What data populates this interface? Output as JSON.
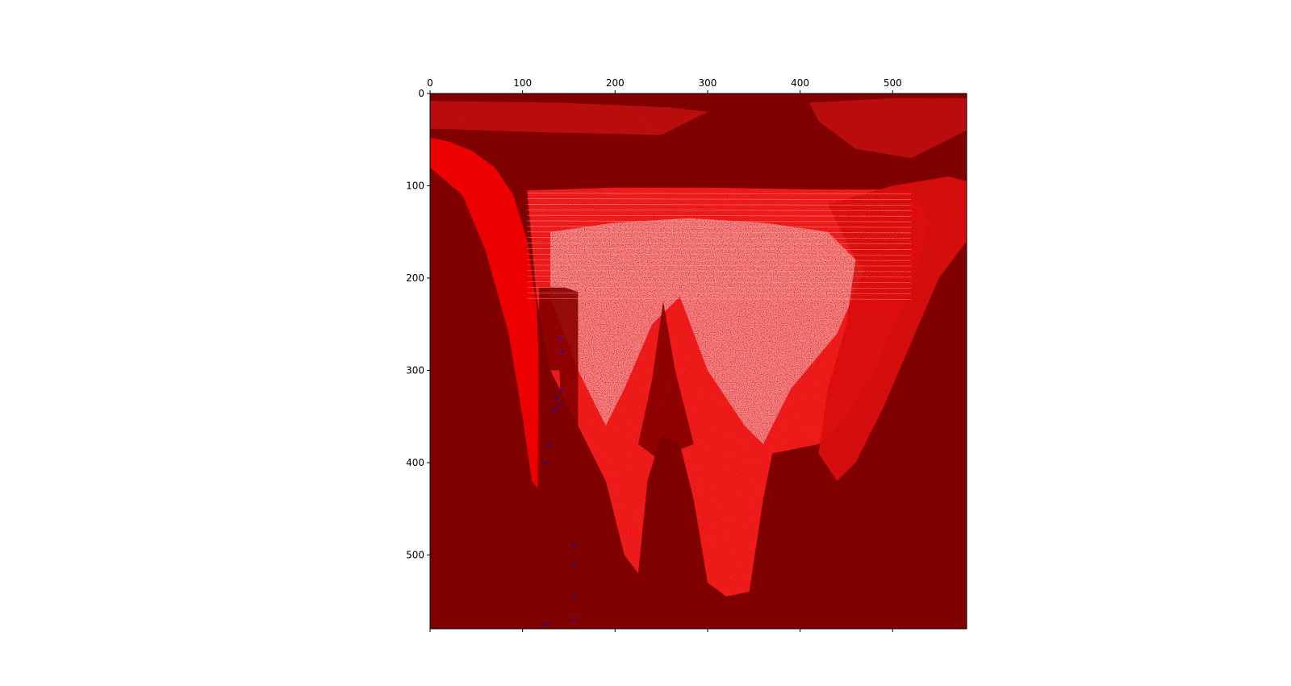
{
  "chart_data": {
    "type": "heatmap",
    "title": "",
    "xlabel": "",
    "ylabel": "",
    "xlim": [
      0,
      580
    ],
    "ylim": [
      580,
      0
    ],
    "x_axis_position": "top",
    "x_ticks": [
      0,
      100,
      200,
      300,
      400,
      500
    ],
    "y_ticks": [
      0,
      100,
      200,
      300,
      400,
      500
    ],
    "x_tick_labels": [
      "0",
      "100",
      "200",
      "300",
      "400",
      "500"
    ],
    "y_tick_labels": [
      "0",
      "100",
      "200",
      "300",
      "400",
      "500"
    ],
    "grid": false,
    "colorbar": false,
    "background_color": "#800000",
    "colormap": [
      "#0000ff",
      "#ff0000",
      "#ffffff",
      "#800000"
    ],
    "regions": [
      {
        "kind": "left-lobe",
        "points": [
          [
            0,
            48
          ],
          [
            20,
            52
          ],
          [
            45,
            62
          ],
          [
            70,
            80
          ],
          [
            90,
            110
          ],
          [
            105,
            160
          ],
          [
            115,
            230
          ],
          [
            118,
            300
          ],
          [
            120,
            380
          ],
          [
            118,
            430
          ],
          [
            110,
            420
          ],
          [
            100,
            350
          ],
          [
            85,
            260
          ],
          [
            60,
            170
          ],
          [
            35,
            110
          ],
          [
            0,
            80
          ]
        ],
        "color": "#ff0000"
      },
      {
        "kind": "central-bowl",
        "points": [
          [
            105,
            105
          ],
          [
            200,
            102
          ],
          [
            300,
            102
          ],
          [
            420,
            104
          ],
          [
            520,
            104
          ],
          [
            540,
            140
          ],
          [
            520,
            210
          ],
          [
            480,
            300
          ],
          [
            450,
            350
          ],
          [
            420,
            380
          ],
          [
            370,
            390
          ],
          [
            360,
            440
          ],
          [
            345,
            540
          ],
          [
            320,
            545
          ],
          [
            300,
            530
          ],
          [
            285,
            440
          ],
          [
            270,
            380
          ],
          [
            250,
            370
          ],
          [
            235,
            420
          ],
          [
            225,
            520
          ],
          [
            210,
            500
          ],
          [
            190,
            420
          ],
          [
            160,
            360
          ],
          [
            130,
            300
          ],
          [
            115,
            220
          ]
        ],
        "color": "#ff2020"
      },
      {
        "kind": "bright-arc",
        "points": [
          [
            130,
            150
          ],
          [
            200,
            140
          ],
          [
            280,
            135
          ],
          [
            360,
            140
          ],
          [
            430,
            150
          ],
          [
            470,
            190
          ],
          [
            440,
            260
          ],
          [
            390,
            320
          ],
          [
            360,
            380
          ],
          [
            340,
            360
          ],
          [
            300,
            300
          ],
          [
            270,
            220
          ],
          [
            240,
            250
          ],
          [
            210,
            320
          ],
          [
            190,
            360
          ],
          [
            160,
            300
          ],
          [
            130,
            220
          ]
        ],
        "color": "#ffb0b0"
      },
      {
        "kind": "right-lobe",
        "points": [
          [
            430,
            120
          ],
          [
            500,
            100
          ],
          [
            560,
            90
          ],
          [
            580,
            95
          ],
          [
            580,
            160
          ],
          [
            550,
            200
          ],
          [
            520,
            270
          ],
          [
            490,
            340
          ],
          [
            460,
            400
          ],
          [
            440,
            420
          ],
          [
            420,
            390
          ],
          [
            430,
            320
          ],
          [
            450,
            250
          ],
          [
            460,
            180
          ]
        ],
        "color": "#e01010"
      },
      {
        "kind": "top-band",
        "points": [
          [
            0,
            8
          ],
          [
            140,
            10
          ],
          [
            260,
            15
          ],
          [
            300,
            20
          ],
          [
            250,
            45
          ],
          [
            120,
            42
          ],
          [
            0,
            38
          ]
        ],
        "color": "#c01010"
      },
      {
        "kind": "top-right-band",
        "points": [
          [
            410,
            10
          ],
          [
            500,
            5
          ],
          [
            580,
            5
          ],
          [
            580,
            40
          ],
          [
            520,
            70
          ],
          [
            460,
            60
          ],
          [
            420,
            30
          ]
        ],
        "color": "#c01010"
      },
      {
        "kind": "peak",
        "points": [
          [
            225,
            380
          ],
          [
            240,
            310
          ],
          [
            252,
            225
          ],
          [
            265,
            300
          ],
          [
            285,
            380
          ],
          [
            260,
            390
          ],
          [
            245,
            395
          ]
        ],
        "color": "#800000"
      },
      {
        "kind": "column-gap",
        "points": [
          [
            118,
            210
          ],
          [
            145,
            210
          ],
          [
            160,
            215
          ],
          [
            160,
            580
          ],
          [
            148,
            580
          ],
          [
            140,
            300
          ],
          [
            125,
            300
          ],
          [
            120,
            580
          ],
          [
            115,
            580
          ]
        ],
        "color": "#800000"
      }
    ],
    "speckles": [
      {
        "x": 137,
        "y": 330,
        "color": "#0000ff"
      },
      {
        "x": 139,
        "y": 338,
        "color": "#0000ff"
      },
      {
        "x": 135,
        "y": 345,
        "color": "#0000ff"
      },
      {
        "x": 141,
        "y": 322,
        "color": "#0000ff"
      },
      {
        "x": 128,
        "y": 380,
        "color": "#0000ff"
      },
      {
        "x": 125,
        "y": 400,
        "color": "#0000ff"
      },
      {
        "x": 155,
        "y": 490,
        "color": "#0000ff"
      },
      {
        "x": 156,
        "y": 510,
        "color": "#0000ff"
      },
      {
        "x": 155,
        "y": 545,
        "color": "#0000ff"
      },
      {
        "x": 154,
        "y": 570,
        "color": "#0000ff"
      },
      {
        "x": 124,
        "y": 575,
        "color": "#0000ff"
      },
      {
        "x": 140,
        "y": 265,
        "color": "#0000ff"
      },
      {
        "x": 143,
        "y": 280,
        "color": "#0000ff"
      }
    ]
  }
}
